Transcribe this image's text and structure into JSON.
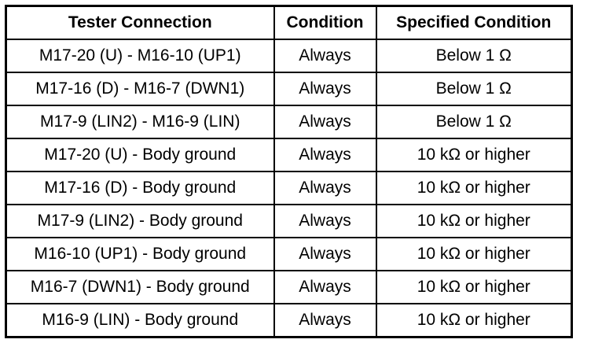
{
  "table": {
    "headers": [
      "Tester Connection",
      "Condition",
      "Specified Condition"
    ],
    "rows": [
      [
        "M17-20 (U) - M16-10 (UP1)",
        "Always",
        "Below 1 Ω"
      ],
      [
        "M17-16 (D) - M16-7 (DWN1)",
        "Always",
        "Below 1 Ω"
      ],
      [
        "M17-9 (LIN2) - M16-9 (LIN)",
        "Always",
        "Below 1 Ω"
      ],
      [
        "M17-20 (U) - Body ground",
        "Always",
        "10 kΩ or higher"
      ],
      [
        "M17-16 (D) - Body ground",
        "Always",
        "10 kΩ or higher"
      ],
      [
        "M17-9 (LIN2) - Body ground",
        "Always",
        "10 kΩ or higher"
      ],
      [
        "M16-10 (UP1) - Body ground",
        "Always",
        "10 kΩ or higher"
      ],
      [
        "M16-7 (DWN1) - Body ground",
        "Always",
        "10 kΩ or higher"
      ],
      [
        "M16-9 (LIN) - Body ground",
        "Always",
        "10 kΩ or higher"
      ]
    ]
  }
}
